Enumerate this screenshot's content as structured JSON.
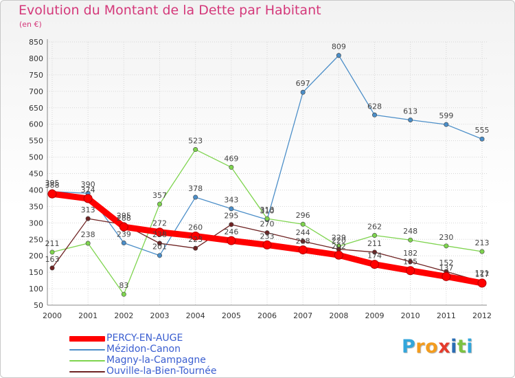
{
  "chart_data": {
    "type": "line",
    "title": "Evolution du Montant de la Dette par Habitant",
    "subtitle": "(en €)",
    "categories": [
      "2000",
      "2001",
      "2002",
      "2003",
      "2004",
      "2005",
      "2006",
      "2007",
      "2008",
      "2009",
      "2010",
      "2011",
      "2012"
    ],
    "yticks": [
      50,
      100,
      150,
      200,
      250,
      300,
      350,
      400,
      450,
      500,
      550,
      600,
      650,
      700,
      750,
      800,
      850
    ],
    "ylim": [
      50,
      850
    ],
    "series": [
      {
        "name": "PERCY-EN-AUGE",
        "color": "#ff0000",
        "values": [
          388,
          374,
          288,
          272,
          260,
          246,
          233,
          218,
          202,
          174,
          155,
          137,
          117
        ],
        "labels": [
          "388",
          "374",
          "288",
          "272",
          "260",
          "246",
          "233",
          "218",
          "202",
          "174",
          "155",
          "137",
          "117"
        ]
      },
      {
        "name": "Mézidon-Canon",
        "color": "#4b8ec8",
        "values": [
          395,
          390,
          239,
          201,
          378,
          343,
          310,
          697,
          809,
          628,
          613,
          599,
          555
        ],
        "labels": [
          "395",
          "390",
          "239",
          "201",
          "378",
          "343",
          "310",
          "697",
          "809",
          "628",
          "613",
          "599",
          "555"
        ]
      },
      {
        "name": "Magny-la-Campagne",
        "color": "#7ed44e",
        "values": [
          211,
          238,
          83,
          357,
          523,
          469,
          313,
          296,
          229,
          262,
          248,
          230,
          213
        ],
        "labels": [
          "211",
          "238",
          "83",
          "357",
          "523",
          "469",
          "313",
          "296",
          "229",
          "262",
          "248",
          "230",
          "213"
        ]
      },
      {
        "name": "Ouville-la-Bien-Tournée",
        "color": "#6e2222",
        "values": [
          163,
          313,
          295,
          238,
          223,
          295,
          270,
          244,
          220,
          211,
          182,
          152,
          121
        ],
        "labels": [
          "163",
          "313",
          "295",
          "238",
          "223",
          "295",
          "270",
          "244",
          "220",
          "211",
          "182",
          "152",
          "121"
        ]
      }
    ]
  },
  "brand": {
    "letters": [
      "P",
      "r",
      "o",
      "x",
      "i",
      "t",
      "i"
    ],
    "colors": [
      "#33a6db",
      "#f39c1e",
      "#f39c1e",
      "#e53b2c",
      "#2a6db4",
      "#7cc242",
      "#33a6db"
    ]
  }
}
